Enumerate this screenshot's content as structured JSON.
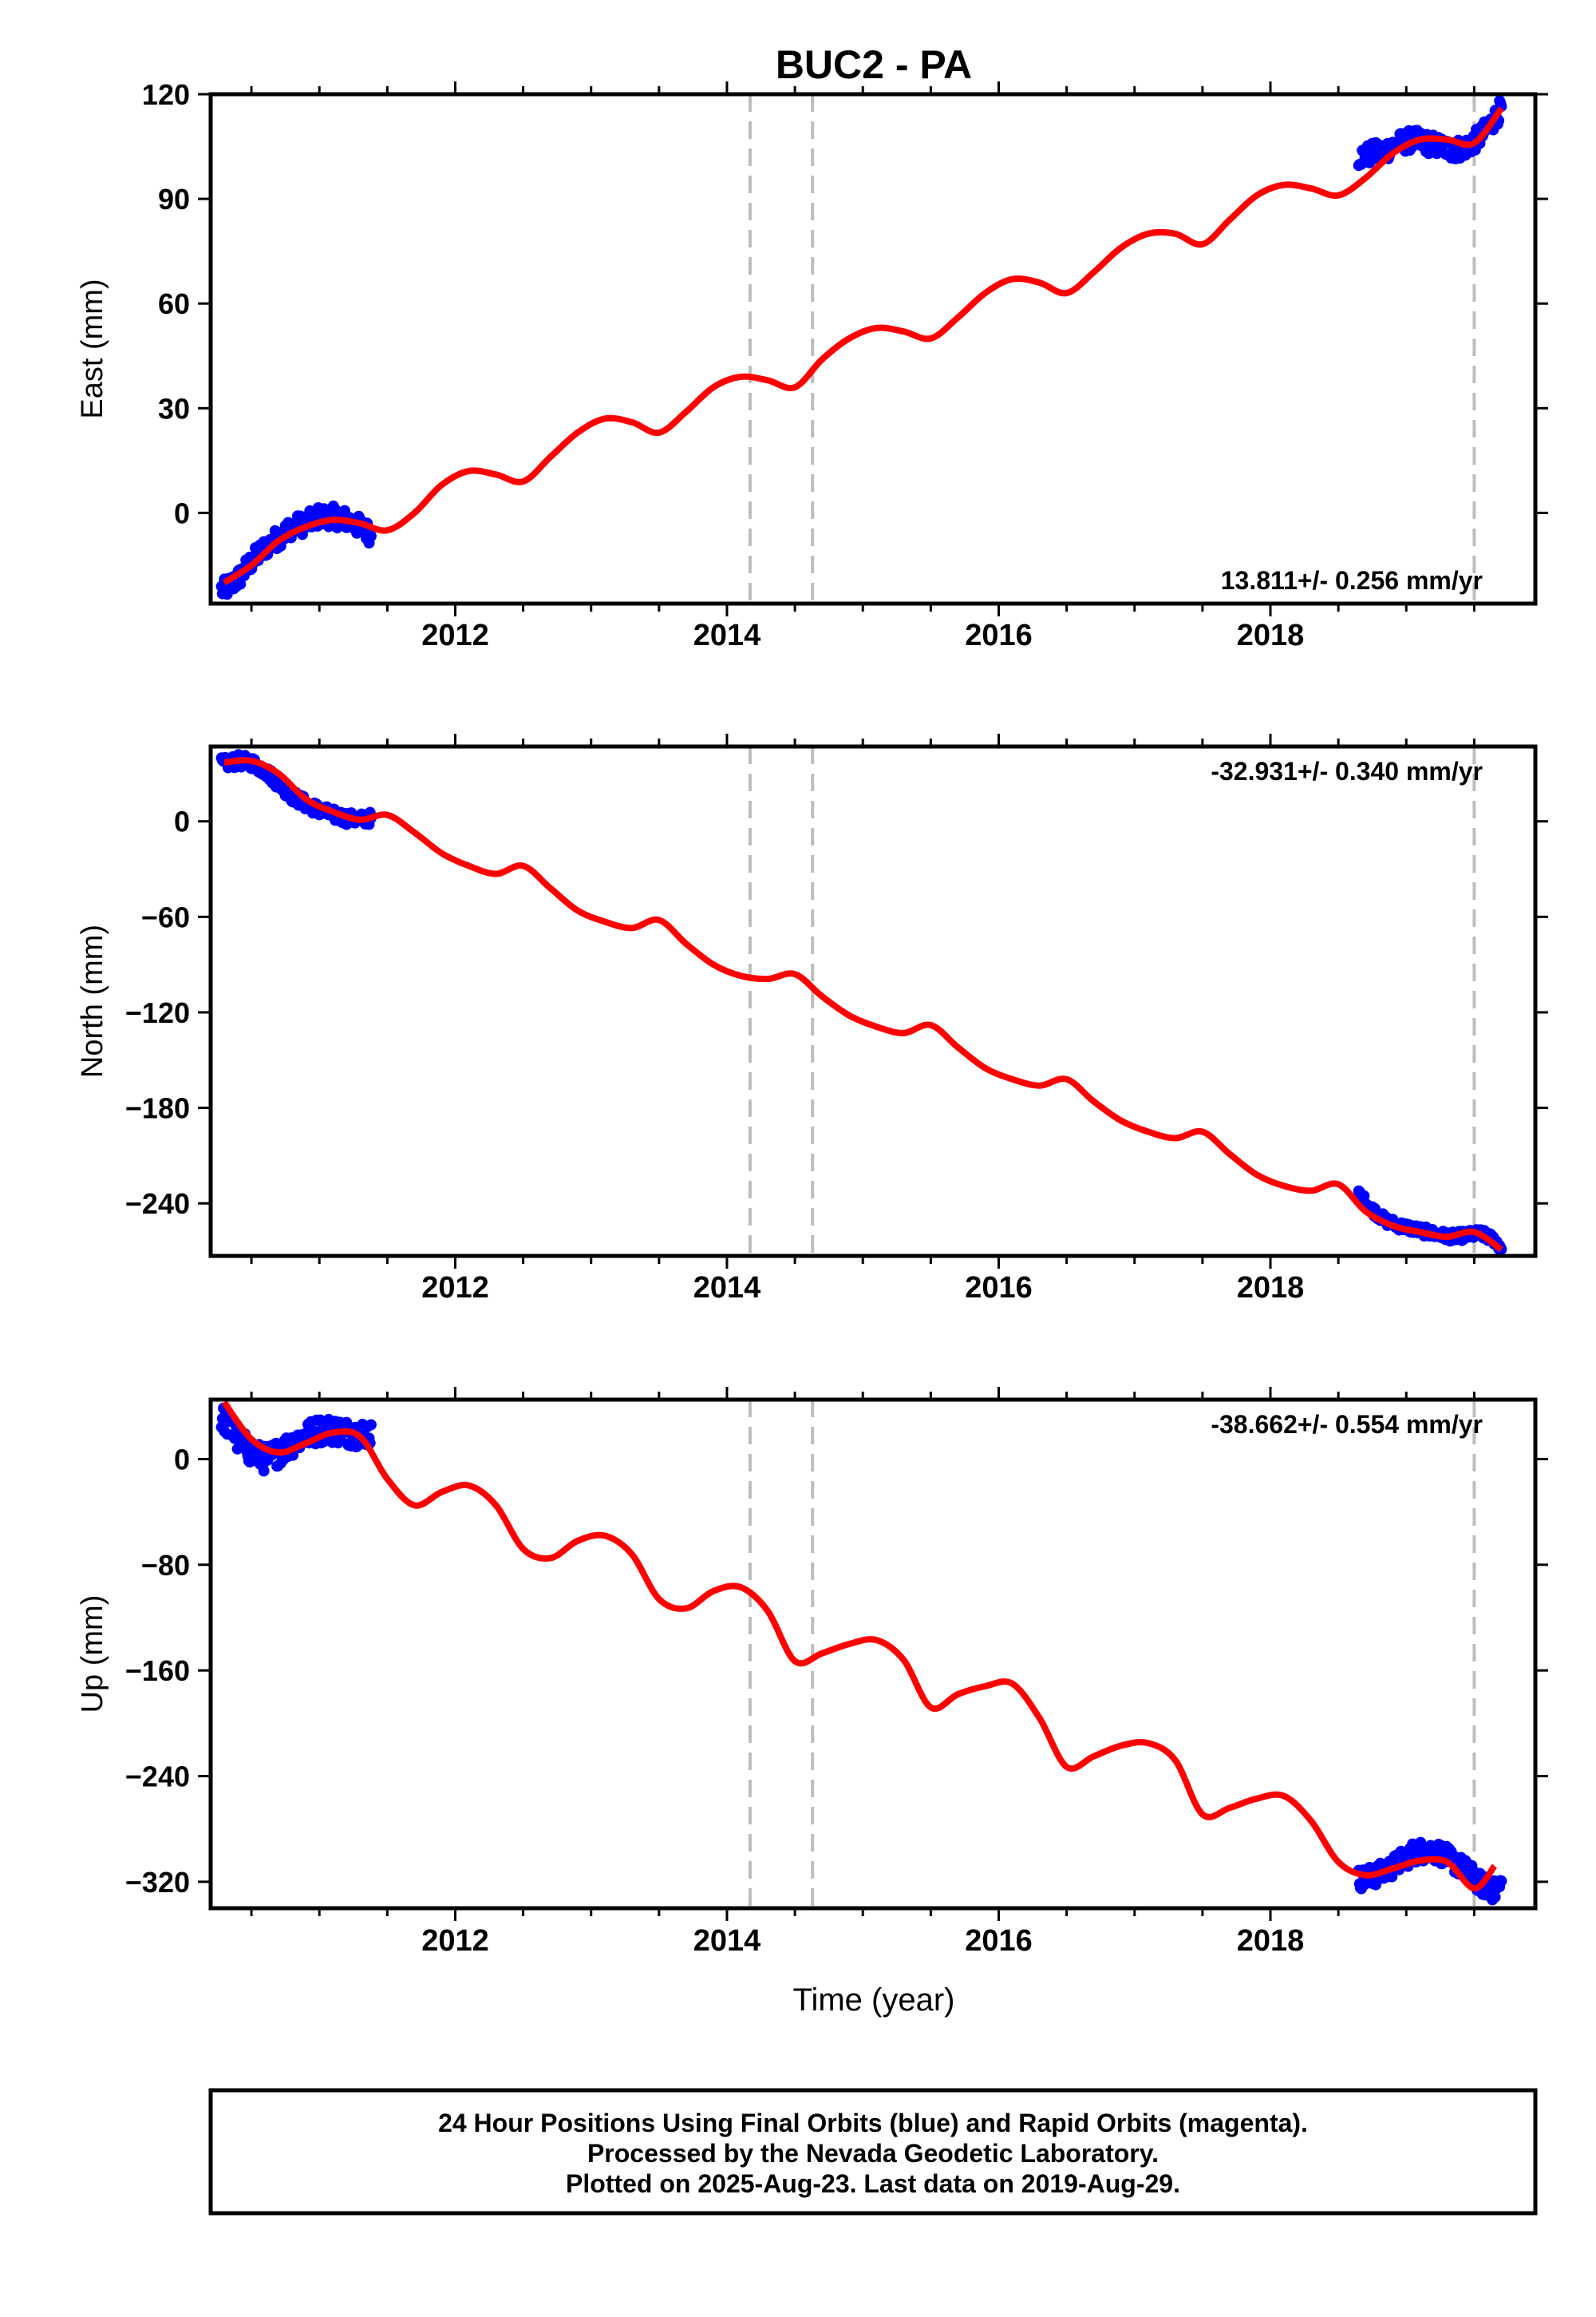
{
  "title": "BUC2 - PA",
  "x_axis_label": "Time (year)",
  "caption_lines": [
    "24 Hour Positions Using Final Orbits (blue) and Rapid Orbits (magenta).",
    "Processed by the Nevada Geodetic Laboratory.",
    "Plotted on 2025-Aug-23. Last data on 2019-Aug-29."
  ],
  "colors": {
    "final_orbits": "#0000ff",
    "model_fit": "#ff0000",
    "event_lines": "#bdbdbd",
    "frame": "#000000"
  },
  "chart_data": [
    {
      "type": "scatter",
      "component": "East",
      "ylabel": "East (mm)",
      "rate_label": "13.811+/- 0.256 mm/yr",
      "rate_position": "bottom-right",
      "xlim": [
        2010.2,
        2019.95
      ],
      "ylim": [
        -26,
        120
      ],
      "xticks": [
        2012,
        2014,
        2016,
        2018
      ],
      "yticks": [
        0,
        30,
        60,
        90,
        120
      ],
      "event_lines_x": [
        2014.17,
        2014.63,
        2019.5
      ],
      "rate_mm_per_yr": 13.811,
      "fit": {
        "x": [
          2010.3,
          2010.5,
          2010.7,
          2010.9,
          2011.1,
          2011.3,
          2011.5,
          2011.7,
          2011.9,
          2012.1,
          2012.3,
          2012.5,
          2012.7,
          2012.9,
          2013.1,
          2013.3,
          2013.5,
          2013.7,
          2013.9,
          2014.1,
          2014.3,
          2014.5,
          2014.7,
          2014.9,
          2015.1,
          2015.3,
          2015.5,
          2015.7,
          2015.9,
          2016.1,
          2016.3,
          2016.5,
          2016.7,
          2016.9,
          2017.1,
          2017.3,
          2017.5,
          2017.7,
          2017.9,
          2018.1,
          2018.3,
          2018.5,
          2018.7,
          2018.9,
          2019.1,
          2019.3,
          2019.5,
          2019.7
        ],
        "y": [
          -20,
          -15,
          -8,
          -4,
          -2,
          -3,
          -5,
          0,
          8,
          12,
          11,
          9,
          16,
          23,
          27,
          26,
          23,
          29,
          36,
          39,
          38,
          36,
          44,
          50,
          53,
          52,
          50,
          56,
          63,
          67,
          66,
          63,
          69,
          76,
          80,
          80,
          77,
          84,
          91,
          94,
          93,
          91,
          96,
          103,
          107,
          107,
          106,
          116
        ],
        "color": "#ff0000"
      },
      "observations": [
        {
          "x_range": [
            2010.28,
            2011.38
          ],
          "x": [
            2010.3,
            2010.4,
            2010.5,
            2010.6,
            2010.7,
            2010.8,
            2010.9,
            2011.0,
            2011.1,
            2011.2,
            2011.3,
            2011.38
          ],
          "y": [
            -22,
            -19,
            -14,
            -10,
            -7,
            -4,
            -3,
            -1,
            -1,
            -2,
            -4,
            -6
          ],
          "spread_mm": 3,
          "color": "#0000ff"
        },
        {
          "x_range": [
            2018.65,
            2019.7
          ],
          "x": [
            2018.65,
            2018.75,
            2018.85,
            2018.95,
            2019.05,
            2019.15,
            2019.25,
            2019.35,
            2019.45,
            2019.55,
            2019.65,
            2019.7
          ],
          "y": [
            102,
            103,
            104,
            106,
            107,
            106,
            105,
            104,
            105,
            108,
            113,
            116
          ],
          "spread_mm": 3,
          "color": "#0000ff"
        }
      ]
    },
    {
      "type": "scatter",
      "component": "North",
      "ylabel": "North (mm)",
      "rate_label": "-32.931+/- 0.340 mm/yr",
      "rate_position": "top-right",
      "xlim": [
        2010.2,
        2019.95
      ],
      "ylim": [
        -273,
        47
      ],
      "xticks": [
        2012,
        2014,
        2016,
        2018
      ],
      "yticks": [
        0,
        -60,
        -120,
        -180,
        -240
      ],
      "event_lines_x": [
        2014.17,
        2014.63,
        2019.5
      ],
      "rate_mm_per_yr": -32.931,
      "fit": {
        "x": [
          2010.3,
          2010.5,
          2010.7,
          2010.9,
          2011.1,
          2011.3,
          2011.5,
          2011.7,
          2011.9,
          2012.1,
          2012.3,
          2012.5,
          2012.7,
          2012.9,
          2013.1,
          2013.3,
          2013.5,
          2013.7,
          2013.9,
          2014.1,
          2014.3,
          2014.5,
          2014.7,
          2014.9,
          2015.1,
          2015.3,
          2015.5,
          2015.7,
          2015.9,
          2016.1,
          2016.3,
          2016.5,
          2016.7,
          2016.9,
          2017.1,
          2017.3,
          2017.5,
          2017.7,
          2017.9,
          2018.1,
          2018.3,
          2018.5,
          2018.7,
          2018.9,
          2019.1,
          2019.3,
          2019.5,
          2019.7
        ],
        "y": [
          37,
          38,
          30,
          14,
          6,
          1,
          4,
          -7,
          -20,
          -28,
          -33,
          -28,
          -42,
          -56,
          -63,
          -67,
          -62,
          -77,
          -90,
          -97,
          -99,
          -96,
          -110,
          -122,
          -129,
          -133,
          -128,
          -142,
          -155,
          -162,
          -166,
          -162,
          -176,
          -188,
          -195,
          -199,
          -195,
          -209,
          -222,
          -229,
          -232,
          -228,
          -245,
          -254,
          -258,
          -261,
          -258,
          -269
        ],
        "color": "#ff0000"
      },
      "observations": [
        {
          "x_range": [
            2010.28,
            2011.38
          ],
          "x": [
            2010.3,
            2010.4,
            2010.5,
            2010.6,
            2010.7,
            2010.8,
            2010.9,
            2011.0,
            2011.1,
            2011.2,
            2011.3,
            2011.38
          ],
          "y": [
            36,
            38,
            37,
            32,
            24,
            16,
            11,
            7,
            4,
            2,
            1,
            2
          ],
          "spread_mm": 4,
          "color": "#0000ff"
        },
        {
          "x_range": [
            2018.65,
            2019.7
          ],
          "x": [
            2018.65,
            2018.75,
            2018.85,
            2018.95,
            2019.05,
            2019.15,
            2019.25,
            2019.35,
            2019.45,
            2019.55,
            2019.65,
            2019.7
          ],
          "y": [
            -234,
            -244,
            -251,
            -254,
            -256,
            -258,
            -260,
            -261,
            -260,
            -259,
            -263,
            -268
          ],
          "spread_mm": 3,
          "color": "#0000ff"
        }
      ]
    },
    {
      "type": "scatter",
      "component": "Up",
      "ylabel": "Up (mm)",
      "rate_label": "-38.662+/- 0.554 mm/yr",
      "rate_position": "top-right",
      "xlim": [
        2010.2,
        2019.95
      ],
      "ylim": [
        -340,
        45
      ],
      "xticks": [
        2012,
        2014,
        2016,
        2018
      ],
      "yticks": [
        0,
        -80,
        -160,
        -240,
        -320
      ],
      "event_lines_x": [
        2014.17,
        2014.63,
        2019.5
      ],
      "rate_mm_per_yr": -38.662,
      "fit": {
        "x": [
          2010.3,
          2010.5,
          2010.7,
          2010.9,
          2011.1,
          2011.3,
          2011.5,
          2011.7,
          2011.9,
          2012.1,
          2012.3,
          2012.5,
          2012.7,
          2012.9,
          2013.1,
          2013.3,
          2013.5,
          2013.7,
          2013.9,
          2014.1,
          2014.3,
          2014.5,
          2014.7,
          2014.9,
          2015.1,
          2015.3,
          2015.5,
          2015.7,
          2015.9,
          2016.1,
          2016.3,
          2016.5,
          2016.7,
          2016.9,
          2017.1,
          2017.3,
          2017.5,
          2017.7,
          2017.9,
          2018.1,
          2018.3,
          2018.5,
          2018.7,
          2018.9,
          2019.1,
          2019.3,
          2019.5,
          2019.65
        ],
        "y": [
          43,
          15,
          5,
          12,
          20,
          17,
          -15,
          -35,
          -25,
          -20,
          -35,
          -68,
          -75,
          -62,
          -58,
          -72,
          -106,
          -113,
          -100,
          -97,
          -115,
          -153,
          -147,
          -140,
          -137,
          -152,
          -188,
          -178,
          -172,
          -170,
          -196,
          -233,
          -225,
          -217,
          -215,
          -228,
          -269,
          -264,
          -257,
          -255,
          -274,
          -305,
          -315,
          -310,
          -304,
          -305,
          -325,
          -308
        ],
        "color": "#ff0000"
      },
      "observations": [
        {
          "x_range": [
            2010.28,
            2011.38
          ],
          "x": [
            2010.3,
            2010.4,
            2010.5,
            2010.6,
            2010.7,
            2010.8,
            2010.9,
            2011.0,
            2011.1,
            2011.2,
            2011.3,
            2011.38
          ],
          "y": [
            30,
            15,
            5,
            0,
            5,
            12,
            18,
            22,
            22,
            20,
            19,
            20
          ],
          "spread_mm": 10,
          "color": "#0000ff"
        },
        {
          "x_range": [
            2018.65,
            2019.7
          ],
          "x": [
            2018.65,
            2018.75,
            2018.85,
            2018.95,
            2019.05,
            2019.15,
            2019.25,
            2019.35,
            2019.45,
            2019.55,
            2019.65,
            2019.7
          ],
          "y": [
            -318,
            -316,
            -312,
            -305,
            -298,
            -296,
            -298,
            -305,
            -312,
            -322,
            -327,
            -322
          ],
          "spread_mm": 8,
          "color": "#0000ff"
        }
      ]
    }
  ]
}
